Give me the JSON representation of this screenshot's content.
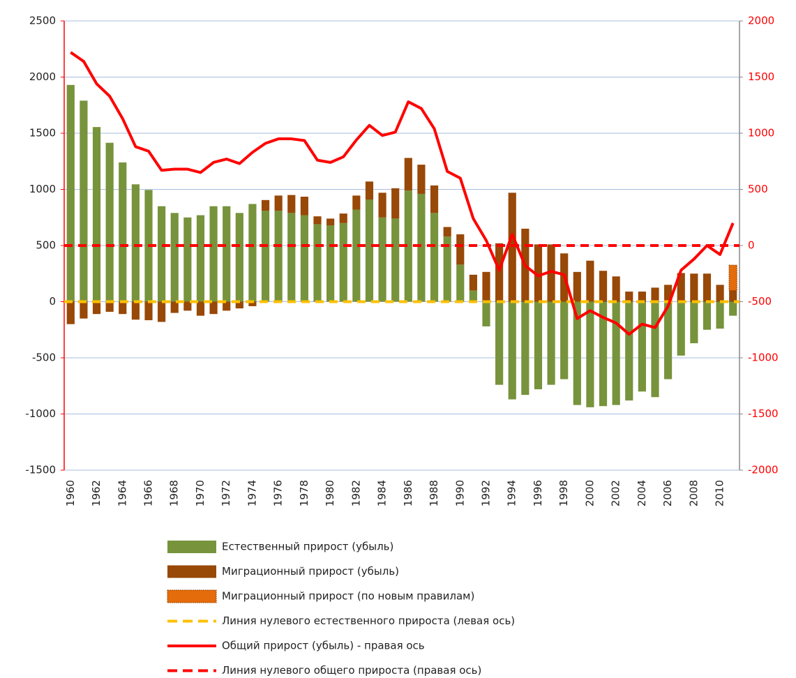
{
  "chart_data": {
    "type": "bar",
    "stacked": true,
    "categories": [
      "1960",
      null,
      "1962",
      null,
      "1964",
      null,
      "1966",
      null,
      "1968",
      null,
      "1970",
      null,
      "1972",
      null,
      "1974",
      null,
      "1976",
      null,
      "1978",
      null,
      "1980",
      null,
      "1982",
      null,
      "1984",
      null,
      "1986",
      null,
      "1988",
      null,
      "1990",
      null,
      "1992",
      null,
      "1994",
      null,
      "1996",
      null,
      "1998",
      null,
      "2000",
      null,
      "2002",
      null,
      "2004",
      null,
      "2006",
      null,
      "2008",
      null,
      "2010",
      null
    ],
    "ylim": [
      -1500,
      2500
    ],
    "yticks": [
      -1500,
      -1000,
      -500,
      0,
      500,
      1000,
      1500,
      2000,
      2500
    ],
    "y2lim": [
      -2000,
      2000
    ],
    "y2ticks": [
      -2000,
      -1500,
      -1000,
      -500,
      0,
      500,
      1000,
      1500,
      2000
    ],
    "y2color": "#ff0000",
    "grid": true,
    "legend": "bottom",
    "series": [
      {
        "name": "Естественный прирост (убыль)",
        "type": "bar",
        "color": "#77933c",
        "axis": "y",
        "values": [
          1930,
          1790,
          1555,
          1415,
          1240,
          1045,
          995,
          850,
          790,
          750,
          770,
          850,
          850,
          790,
          870,
          810,
          810,
          790,
          770,
          690,
          680,
          700,
          820,
          910,
          750,
          740,
          990,
          960,
          790,
          580,
          330,
          100,
          -220,
          -740,
          -870,
          -830,
          -780,
          -740,
          -690,
          -920,
          -940,
          -930,
          -920,
          -880,
          -800,
          -850,
          -690,
          -480,
          -370,
          -250,
          -240,
          -125
        ]
      },
      {
        "name": "Миграционный прирост (убыль)",
        "type": "bar",
        "color": "#984807",
        "axis": "y",
        "values": [
          -200,
          -150,
          -110,
          -90,
          -110,
          -160,
          -165,
          -180,
          -100,
          -80,
          -125,
          -110,
          -80,
          -60,
          -40,
          95,
          135,
          160,
          165,
          70,
          60,
          85,
          125,
          160,
          220,
          270,
          290,
          260,
          245,
          85,
          270,
          140,
          265,
          520,
          970,
          650,
          510,
          510,
          430,
          265,
          365,
          275,
          225,
          90,
          90,
          125,
          150,
          255,
          250,
          250,
          150,
          100
        ]
      },
      {
        "name": "Миграционный прирост (по новым правилам)",
        "type": "bar",
        "color": "#e46c0a",
        "axis": "y",
        "values": [
          null,
          null,
          null,
          null,
          null,
          null,
          null,
          null,
          null,
          null,
          null,
          null,
          null,
          null,
          null,
          null,
          null,
          null,
          null,
          null,
          null,
          null,
          null,
          null,
          null,
          null,
          null,
          null,
          null,
          null,
          null,
          null,
          null,
          null,
          null,
          null,
          null,
          null,
          null,
          null,
          null,
          null,
          null,
          null,
          null,
          null,
          null,
          null,
          null,
          null,
          null,
          225
        ]
      },
      {
        "name": "Линия нулевого естественного прироста (левая ось)",
        "type": "hline",
        "color": "#ffc000",
        "axis": "y",
        "value": 0
      },
      {
        "name": "Общий прирост (убыль) - правая ось",
        "type": "line",
        "color": "#ff0000",
        "axis": "y2",
        "values": [
          1720,
          1640,
          1440,
          1330,
          1130,
          880,
          840,
          670,
          680,
          680,
          650,
          740,
          770,
          730,
          830,
          910,
          950,
          950,
          935,
          760,
          740,
          790,
          940,
          1070,
          980,
          1010,
          1280,
          1220,
          1040,
          660,
          600,
          240,
          45,
          -220,
          100,
          -180,
          -270,
          -230,
          -260,
          -650,
          -580,
          -640,
          -690,
          -790,
          -700,
          -730,
          -540,
          -220,
          -120,
          0,
          -80,
          200
        ]
      },
      {
        "name": "Линия нулевого общего прироста (правая ось)",
        "type": "hline",
        "color": "#ff0000",
        "axis": "y2",
        "value": 0
      }
    ]
  }
}
